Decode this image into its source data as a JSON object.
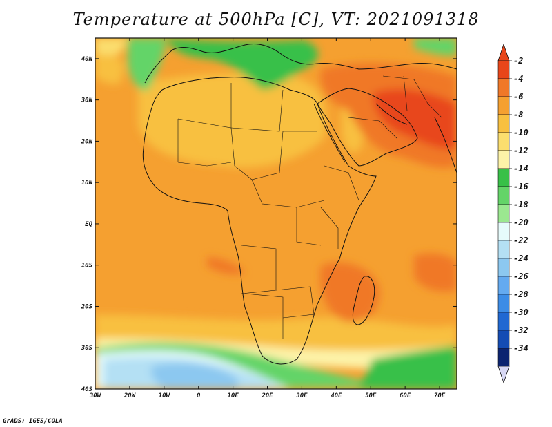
{
  "title": "Temperature at 500hPa [C], VT: 2021091318",
  "footer": "GrADS: IGES/COLA",
  "map": {
    "lon_ticks": [
      "30W",
      "20W",
      "10W",
      "0",
      "10E",
      "20E",
      "30E",
      "40E",
      "50E",
      "60E",
      "70E"
    ],
    "lat_ticks": [
      "40N",
      "30N",
      "20N",
      "10N",
      "EQ",
      "10S",
      "20S",
      "30S",
      "40S"
    ],
    "lon_range": [
      -30,
      75
    ],
    "lat_range": [
      -40,
      45
    ]
  },
  "colorbar": {
    "labels": [
      "-2",
      "-4",
      "-6",
      "-8",
      "-10",
      "-12",
      "-14",
      "-16",
      "-18",
      "-20",
      "-22",
      "-24",
      "-26",
      "-28",
      "-30",
      "-32",
      "-34"
    ],
    "colors": [
      "#e8461a",
      "#f07828",
      "#f5a030",
      "#f8c040",
      "#fbde6e",
      "#fdf3a8",
      "#38c048",
      "#64d468",
      "#9be890",
      "#e6fbfb",
      "#b4e0f4",
      "#8cc8f0",
      "#64aaf0",
      "#3c8ce6",
      "#2068d2",
      "#144cb4",
      "#0c2470"
    ],
    "top_arrow_color": "#e8461a",
    "bottom_arrow_color": "#d8d8f4"
  },
  "field_colors": {
    "hot": "#e8461a",
    "warm": "#f07828",
    "mid": "#f5a030",
    "mild": "#f8c040",
    "cool": "#fbde6e",
    "pale": "#fdf3a8",
    "green": "#38c048",
    "lightgreen": "#64d468",
    "paleblue": "#e6fbfb",
    "lightblue": "#b4e0f4",
    "blue": "#8cc8f0"
  }
}
